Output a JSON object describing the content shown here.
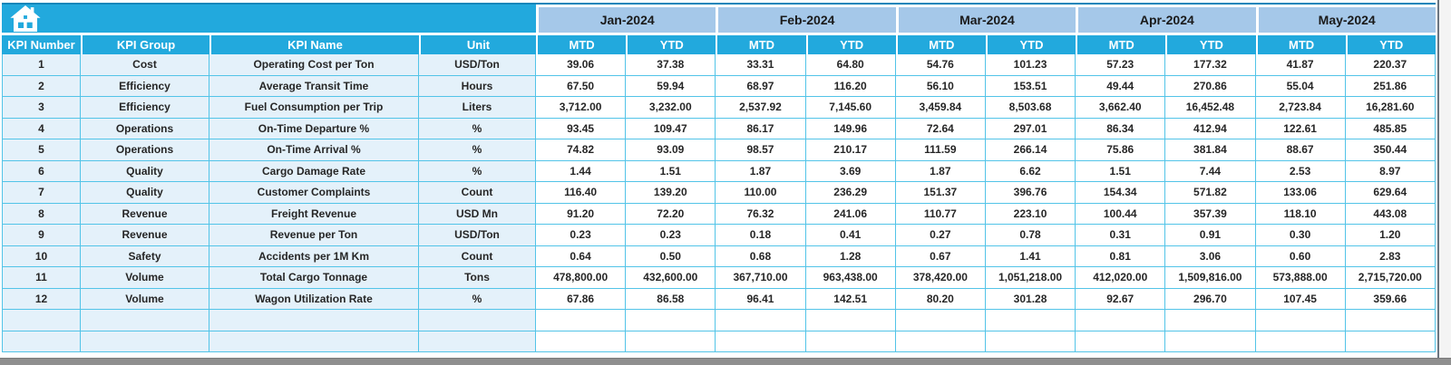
{
  "table": {
    "left_columns": [
      "KPI Number",
      "KPI Group",
      "KPI Name",
      "Unit"
    ],
    "months": [
      "Jan-2024",
      "Feb-2024",
      "Mar-2024",
      "Apr-2024",
      "May-2024"
    ],
    "sub_columns": [
      "MTD",
      "YTD"
    ],
    "rows": [
      {
        "number": "1",
        "group": "Cost",
        "name": "Operating Cost per Ton",
        "unit": "USD/Ton",
        "values": [
          "39.06",
          "37.38",
          "33.31",
          "64.80",
          "54.76",
          "101.23",
          "57.23",
          "177.32",
          "41.87",
          "220.37"
        ]
      },
      {
        "number": "2",
        "group": "Efficiency",
        "name": "Average Transit Time",
        "unit": "Hours",
        "values": [
          "67.50",
          "59.94",
          "68.97",
          "116.20",
          "56.10",
          "153.51",
          "49.44",
          "270.86",
          "55.04",
          "251.86"
        ]
      },
      {
        "number": "3",
        "group": "Efficiency",
        "name": "Fuel Consumption per Trip",
        "unit": "Liters",
        "values": [
          "3,712.00",
          "3,232.00",
          "2,537.92",
          "7,145.60",
          "3,459.84",
          "8,503.68",
          "3,662.40",
          "16,452.48",
          "2,723.84",
          "16,281.60"
        ]
      },
      {
        "number": "4",
        "group": "Operations",
        "name": "On-Time Departure %",
        "unit": "%",
        "values": [
          "93.45",
          "109.47",
          "86.17",
          "149.96",
          "72.64",
          "297.01",
          "86.34",
          "412.94",
          "122.61",
          "485.85"
        ]
      },
      {
        "number": "5",
        "group": "Operations",
        "name": "On-Time Arrival %",
        "unit": "%",
        "values": [
          "74.82",
          "93.09",
          "98.57",
          "210.17",
          "111.59",
          "266.14",
          "75.86",
          "381.84",
          "88.67",
          "350.44"
        ]
      },
      {
        "number": "6",
        "group": "Quality",
        "name": "Cargo Damage Rate",
        "unit": "%",
        "values": [
          "1.44",
          "1.51",
          "1.87",
          "3.69",
          "1.87",
          "6.62",
          "1.51",
          "7.44",
          "2.53",
          "8.97"
        ]
      },
      {
        "number": "7",
        "group": "Quality",
        "name": "Customer Complaints",
        "unit": "Count",
        "values": [
          "116.40",
          "139.20",
          "110.00",
          "236.29",
          "151.37",
          "396.76",
          "154.34",
          "571.82",
          "133.06",
          "629.64"
        ]
      },
      {
        "number": "8",
        "group": "Revenue",
        "name": "Freight Revenue",
        "unit": "USD Mn",
        "values": [
          "91.20",
          "72.20",
          "76.32",
          "241.06",
          "110.77",
          "223.10",
          "100.44",
          "357.39",
          "118.10",
          "443.08"
        ]
      },
      {
        "number": "9",
        "group": "Revenue",
        "name": "Revenue per Ton",
        "unit": "USD/Ton",
        "values": [
          "0.23",
          "0.23",
          "0.18",
          "0.41",
          "0.27",
          "0.78",
          "0.31",
          "0.91",
          "0.30",
          "1.20"
        ]
      },
      {
        "number": "10",
        "group": "Safety",
        "name": "Accidents per 1M Km",
        "unit": "Count",
        "values": [
          "0.64",
          "0.50",
          "0.68",
          "1.28",
          "0.67",
          "1.41",
          "0.81",
          "3.06",
          "0.60",
          "2.83"
        ]
      },
      {
        "number": "11",
        "group": "Volume",
        "name": "Total Cargo Tonnage",
        "unit": "Tons",
        "values": [
          "478,800.00",
          "432,600.00",
          "367,710.00",
          "963,438.00",
          "378,420.00",
          "1,051,218.00",
          "412,020.00",
          "1,509,816.00",
          "573,888.00",
          "2,715,720.00"
        ]
      },
      {
        "number": "12",
        "group": "Volume",
        "name": "Wagon Utilization Rate",
        "unit": "%",
        "values": [
          "67.86",
          "86.58",
          "96.41",
          "142.51",
          "80.20",
          "301.28",
          "92.67",
          "296.70",
          "107.45",
          "359.66"
        ]
      }
    ],
    "empty_row_count": 2
  },
  "icons": {
    "home": "home-icon"
  },
  "colors": {
    "header_cyan": "#22a9dd",
    "month_band_blue": "#a5c8e9",
    "row_light_blue": "#e4f1fa",
    "grid_border_cyan": "#52c4e8",
    "frame_gray": "#8f8f8f"
  }
}
